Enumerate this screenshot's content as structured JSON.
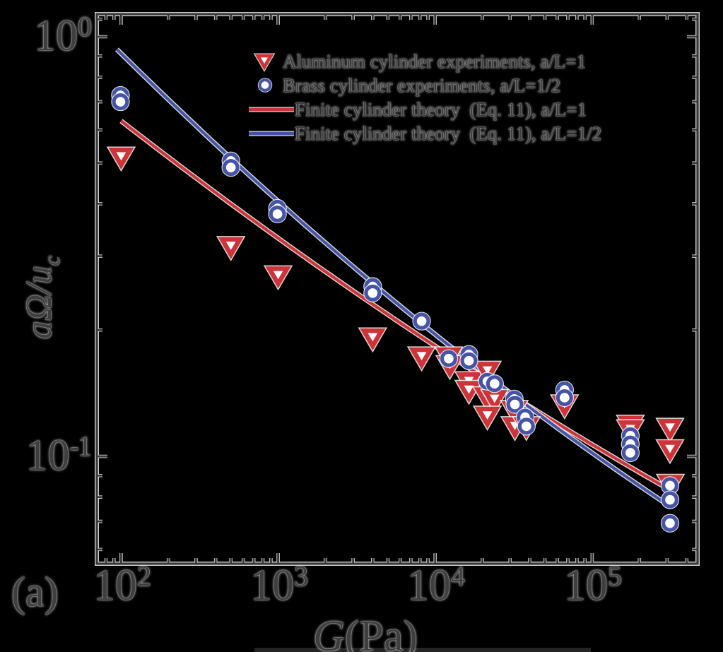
{
  "figure": {
    "panel_label": "(a)",
    "background": "#000000",
    "text_color": "#3f3f3f",
    "axis_color": "#3a3a3a",
    "cropped_bar_color": "#242424"
  },
  "axes": {
    "x": {
      "title_italic": "G",
      "title_rest": "(Pa)",
      "scale": "log",
      "major_ticks": [
        {
          "value": 100,
          "base": "10",
          "exp": "2"
        },
        {
          "value": 1000,
          "base": "10",
          "exp": "3"
        },
        {
          "value": 10000,
          "base": "10",
          "exp": "4"
        },
        {
          "value": 100000,
          "base": "10",
          "exp": "5"
        }
      ]
    },
    "y": {
      "title_main": "aΩ/u",
      "title_sub": "c",
      "scale": "log",
      "major_ticks": [
        {
          "value": 1,
          "base": "10",
          "exp": "0"
        },
        {
          "value": 0.1,
          "base": "10",
          "exp": "-1"
        }
      ],
      "extra_minor_ticks": [
        1.1
      ]
    }
  },
  "legend": {
    "items": [
      {
        "label": "Aluminum cylinder experiments, a/L=1",
        "marker": "triangle-down",
        "color": "#cd3338"
      },
      {
        "label": "Brass cylinder experiments, a/L=1/2",
        "marker": "circle",
        "color": "#4554a6"
      },
      {
        "label": "Finite cylinder theory  (Eq. 11), a/L=1",
        "marker": "line",
        "color": "#cd3338"
      },
      {
        "label": "Finite cylinder theory  (Eq. 11), a/L=1/2",
        "marker": "line",
        "color": "#4554a6"
      }
    ]
  },
  "chart_data": {
    "type": "scatter",
    "title": "",
    "xlabel": "G(Pa)",
    "ylabel": "aΩ/u_c",
    "x_scale": "log",
    "y_scale": "log",
    "xlim": [
      70,
      469000
    ],
    "ylim": [
      0.0555,
      1.132
    ],
    "grid": false,
    "legend_position": "upper right inside",
    "series": [
      {
        "name": "Aluminum cylinder experiments, a/L=1",
        "type": "scatter",
        "marker": "triangle-down",
        "color": "#cd3338",
        "points": [
          [
            100,
            0.518
          ],
          [
            500,
            0.317
          ],
          [
            1000,
            0.27
          ],
          [
            4000,
            0.192
          ],
          [
            8200,
            0.173
          ],
          [
            12200,
            0.173
          ],
          [
            12400,
            0.165
          ],
          [
            16400,
            0.151
          ],
          [
            16400,
            0.144
          ],
          [
            21500,
            0.16
          ],
          [
            21300,
            0.139
          ],
          [
            23900,
            0.137
          ],
          [
            21500,
            0.125
          ],
          [
            31900,
            0.129
          ],
          [
            32200,
            0.118
          ],
          [
            38100,
            0.118
          ],
          [
            66700,
            0.133
          ],
          [
            175000,
            0.119
          ],
          [
            175000,
            0.116
          ],
          [
            313000,
            0.117
          ],
          [
            313000,
            0.104
          ],
          [
            315000,
            0.086
          ]
        ]
      },
      {
        "name": "Brass cylinder experiments, a/L=1/2",
        "type": "scatter",
        "marker": "circle",
        "color": "#4554a6",
        "points": [
          [
            99,
            0.725
          ],
          [
            99,
            0.7
          ],
          [
            500,
            0.506
          ],
          [
            500,
            0.488
          ],
          [
            990,
            0.39
          ],
          [
            990,
            0.378
          ],
          [
            4000,
            0.254
          ],
          [
            4000,
            0.245
          ],
          [
            8200,
            0.21
          ],
          [
            12200,
            0.171
          ],
          [
            16400,
            0.175
          ],
          [
            16400,
            0.169
          ],
          [
            21500,
            0.151
          ],
          [
            23900,
            0.149
          ],
          [
            31900,
            0.137
          ],
          [
            32200,
            0.133
          ],
          [
            37400,
            0.124
          ],
          [
            38100,
            0.118
          ],
          [
            66700,
            0.144
          ],
          [
            66700,
            0.138
          ],
          [
            175000,
            0.112
          ],
          [
            175000,
            0.107
          ],
          [
            175000,
            0.102
          ],
          [
            313000,
            0.0852
          ],
          [
            313000,
            0.0788
          ],
          [
            313000,
            0.0693
          ]
        ]
      },
      {
        "name": "Finite cylinder theory  (Eq. 11), a/L=1",
        "type": "line",
        "color": "#cd3338",
        "control_points": [
          [
            100,
            0.63
          ],
          [
            3300,
            0.242
          ],
          [
            296000,
            0.0842
          ]
        ]
      },
      {
        "name": "Finite cylinder theory  (Eq. 11), a/L=1/2",
        "type": "line",
        "color": "#4554a6",
        "control_points": [
          [
            94,
            0.933
          ],
          [
            5600,
            0.233
          ],
          [
            319000,
            0.0757
          ]
        ]
      }
    ]
  }
}
